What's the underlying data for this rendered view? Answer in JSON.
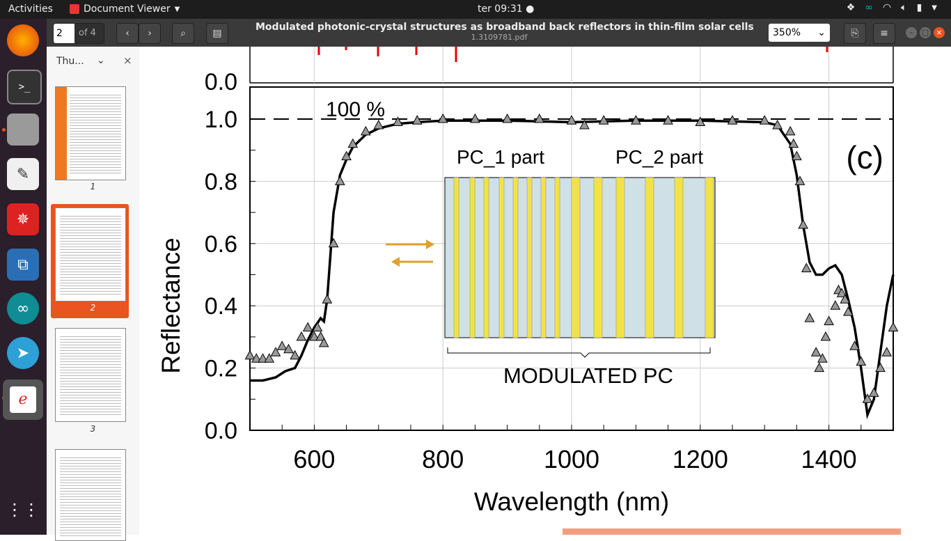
{
  "topbar": {
    "activities": "Activities",
    "app_name": "Document Viewer",
    "clock": "ter 09:31"
  },
  "header": {
    "page_current": "2",
    "page_of": "of 4",
    "title": "Modulated photonic-crystal structures as broadband back reflectors in thin-film solar cells",
    "filename": "1.3109781.pdf",
    "zoom": "350%"
  },
  "sidebar": {
    "label": "Thu...",
    "thumbnails": [
      {
        "num": "1"
      },
      {
        "num": "2"
      },
      {
        "num": "3"
      }
    ]
  },
  "chart_data": {
    "type": "line",
    "panel_label": "(c)",
    "xlabel": "Wavelength (nm)",
    "ylabel": "Reflectance",
    "xlim": [
      500,
      1500
    ],
    "ylim": [
      0.0,
      1.05
    ],
    "x_ticks": [
      "600",
      "800",
      "1000",
      "1200",
      "1400"
    ],
    "y_ticks": [
      "0.0",
      "0.2",
      "0.4",
      "0.6",
      "0.8",
      "1.0"
    ],
    "top_panel_tick": "0.0",
    "reference_label": "100 %",
    "reference_value": 1.0,
    "grid": true,
    "series": [
      {
        "style": "line",
        "x": [
          500,
          520,
          540,
          555,
          570,
          580,
          590,
          600,
          610,
          615,
          620,
          630,
          640,
          650,
          660,
          680,
          700,
          730,
          760,
          800,
          900,
          1000,
          1100,
          1200,
          1300,
          1320,
          1340,
          1350,
          1360,
          1370,
          1380,
          1390,
          1400,
          1410,
          1420,
          1430,
          1440,
          1450,
          1460,
          1470,
          1480,
          1490,
          1500
        ],
        "y": [
          0.16,
          0.16,
          0.17,
          0.19,
          0.2,
          0.24,
          0.29,
          0.33,
          0.36,
          0.35,
          0.42,
          0.7,
          0.82,
          0.87,
          0.91,
          0.95,
          0.97,
          0.985,
          0.99,
          0.995,
          0.995,
          0.99,
          0.995,
          0.995,
          0.99,
          0.98,
          0.92,
          0.82,
          0.66,
          0.54,
          0.5,
          0.5,
          0.52,
          0.53,
          0.5,
          0.42,
          0.33,
          0.2,
          0.05,
          0.1,
          0.25,
          0.4,
          0.5
        ]
      },
      {
        "style": "triangles",
        "x": [
          500,
          510,
          520,
          530,
          540,
          550,
          560,
          570,
          580,
          590,
          600,
          605,
          610,
          615,
          620,
          630,
          640,
          650,
          660,
          680,
          700,
          730,
          760,
          800,
          850,
          900,
          950,
          1000,
          1020,
          1050,
          1100,
          1150,
          1200,
          1250,
          1300,
          1320,
          1340,
          1345,
          1350,
          1355,
          1360,
          1365,
          1370,
          1380,
          1385,
          1390,
          1395,
          1400,
          1410,
          1415,
          1420,
          1425,
          1430,
          1440,
          1450,
          1460,
          1470,
          1480,
          1490,
          1500
        ],
        "y": [
          0.24,
          0.23,
          0.23,
          0.23,
          0.25,
          0.27,
          0.26,
          0.24,
          0.3,
          0.33,
          0.3,
          0.33,
          0.3,
          0.28,
          0.42,
          0.6,
          0.8,
          0.88,
          0.92,
          0.96,
          0.98,
          0.99,
          0.995,
          1.0,
          1.0,
          1.0,
          1.0,
          0.995,
          0.98,
          0.995,
          0.995,
          0.995,
          0.99,
          0.995,
          0.995,
          0.98,
          0.96,
          0.92,
          0.88,
          0.8,
          0.66,
          0.52,
          0.36,
          0.25,
          0.2,
          0.23,
          0.3,
          0.35,
          0.4,
          0.45,
          0.44,
          0.42,
          0.38,
          0.27,
          0.22,
          0.1,
          0.12,
          0.2,
          0.25,
          0.33
        ]
      }
    ],
    "inset": {
      "label_left": "PC_1 part",
      "label_right": "PC_2 part",
      "caption": "MODULATED PC",
      "layer_color_a": "#cfe0e6",
      "layer_color_b": "#f2e245"
    }
  }
}
